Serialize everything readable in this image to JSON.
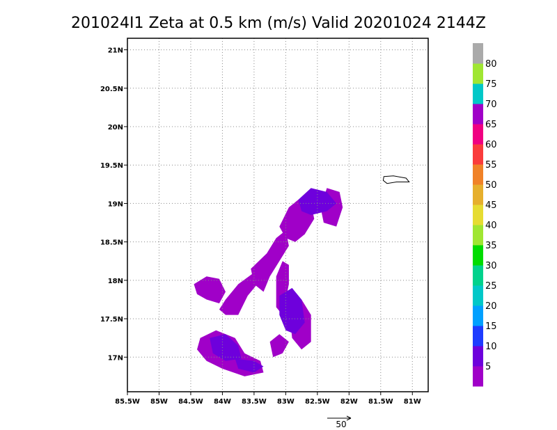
{
  "chart_data": {
    "type": "heatmap",
    "title": "201024I1 Zeta at 0.5 km (m/s) Valid 20201024 2144Z",
    "x_axis": {
      "range": [
        -85.5,
        -80.75
      ],
      "ticks": [
        -85.5,
        -85,
        -84.5,
        -84,
        -83.5,
        -83,
        -82.5,
        -82,
        -81.5,
        -81
      ],
      "tick_labels": [
        "85.5W",
        "85W",
        "84.5W",
        "84W",
        "83.5W",
        "83W",
        "82.5W",
        "82W",
        "81.5W",
        "81W"
      ]
    },
    "y_axis": {
      "range": [
        16.55,
        21.15
      ],
      "ticks": [
        17,
        17.5,
        18,
        18.5,
        19,
        19.5,
        20,
        20.5,
        21
      ],
      "tick_labels": [
        "17N",
        "17.5N",
        "18N",
        "18.5N",
        "19N",
        "19.5N",
        "20N",
        "20.5N",
        "21N"
      ]
    },
    "grid": true,
    "colorbar": {
      "position": "right",
      "labels": [
        "5",
        "10",
        "15",
        "20",
        "25",
        "30",
        "35",
        "40",
        "45",
        "50",
        "55",
        "60",
        "65",
        "70",
        "75",
        "80"
      ],
      "colors": [
        "#a000c8",
        "#6e00dc",
        "#1e3cff",
        "#00a0ff",
        "#00c8c8",
        "#00d28c",
        "#00dc00",
        "#a0e632",
        "#e6dc32",
        "#e6af2d",
        "#f08228",
        "#fa3c3c",
        "#f00082",
        "#a000c8",
        "#00c8c8",
        "#a0e632",
        "#aaaaaa"
      ]
    },
    "vector_reference": {
      "label": "50"
    },
    "regions": [
      {
        "level": 5,
        "polygon": [
          [
            -84.45,
            17.95
          ],
          [
            -84.25,
            18.05
          ],
          [
            -84.05,
            18.02
          ],
          [
            -83.95,
            17.85
          ],
          [
            -84.05,
            17.7
          ],
          [
            -84.25,
            17.75
          ],
          [
            -84.4,
            17.82
          ]
        ]
      },
      {
        "level": 5,
        "polygon": [
          [
            -83.95,
            17.75
          ],
          [
            -83.75,
            17.95
          ],
          [
            -83.5,
            18.1
          ],
          [
            -83.4,
            18.0
          ],
          [
            -83.6,
            17.8
          ],
          [
            -83.75,
            17.55
          ],
          [
            -83.95,
            17.55
          ],
          [
            -84.05,
            17.62
          ]
        ]
      },
      {
        "level": 5,
        "polygon": [
          [
            -83.55,
            18.15
          ],
          [
            -83.3,
            18.35
          ],
          [
            -83.15,
            18.55
          ],
          [
            -83.0,
            18.65
          ],
          [
            -82.95,
            18.45
          ],
          [
            -83.1,
            18.25
          ],
          [
            -83.25,
            18.05
          ],
          [
            -83.35,
            17.85
          ],
          [
            -83.5,
            17.95
          ]
        ]
      },
      {
        "level": 5,
        "polygon": [
          [
            -83.1,
            18.7
          ],
          [
            -82.95,
            18.95
          ],
          [
            -82.8,
            19.05
          ],
          [
            -82.6,
            19.0
          ],
          [
            -82.55,
            18.8
          ],
          [
            -82.7,
            18.6
          ],
          [
            -82.85,
            18.5
          ],
          [
            -83.0,
            18.55
          ]
        ]
      },
      {
        "level": 5,
        "polygon": [
          [
            -83.15,
            18.05
          ],
          [
            -83.05,
            18.25
          ],
          [
            -82.95,
            18.2
          ],
          [
            -82.95,
            17.95
          ],
          [
            -83.05,
            17.55
          ],
          [
            -83.15,
            17.65
          ]
        ]
      },
      {
        "level": 5,
        "polygon": [
          [
            -82.95,
            17.65
          ],
          [
            -82.75,
            17.75
          ],
          [
            -82.6,
            17.55
          ],
          [
            -82.6,
            17.2
          ],
          [
            -82.75,
            17.1
          ],
          [
            -82.9,
            17.25
          ]
        ]
      },
      {
        "level": 5,
        "polygon": [
          [
            -84.35,
            17.25
          ],
          [
            -84.1,
            17.35
          ],
          [
            -83.8,
            17.25
          ],
          [
            -83.65,
            17.05
          ],
          [
            -83.4,
            16.95
          ],
          [
            -83.35,
            16.8
          ],
          [
            -83.65,
            16.75
          ],
          [
            -84.0,
            16.85
          ],
          [
            -84.25,
            16.95
          ],
          [
            -84.4,
            17.1
          ]
        ]
      },
      {
        "level": 5,
        "polygon": [
          [
            -83.25,
            17.2
          ],
          [
            -83.1,
            17.3
          ],
          [
            -82.95,
            17.2
          ],
          [
            -83.05,
            17.05
          ],
          [
            -83.2,
            17.0
          ]
        ]
      },
      {
        "level": 5,
        "polygon": [
          [
            -82.35,
            19.2
          ],
          [
            -82.15,
            19.15
          ],
          [
            -82.1,
            18.95
          ],
          [
            -82.2,
            18.7
          ],
          [
            -82.4,
            18.75
          ],
          [
            -82.45,
            18.95
          ]
        ]
      },
      {
        "level": 10,
        "polygon": [
          [
            -82.8,
            19.05
          ],
          [
            -82.6,
            19.2
          ],
          [
            -82.35,
            19.15
          ],
          [
            -82.2,
            19.0
          ],
          [
            -82.35,
            18.9
          ],
          [
            -82.6,
            18.85
          ],
          [
            -82.75,
            18.9
          ]
        ]
      },
      {
        "level": 10,
        "polygon": [
          [
            -83.1,
            17.8
          ],
          [
            -82.9,
            17.9
          ],
          [
            -82.75,
            17.75
          ],
          [
            -82.7,
            17.45
          ],
          [
            -82.85,
            17.3
          ],
          [
            -83.0,
            17.35
          ],
          [
            -83.1,
            17.55
          ]
        ]
      },
      {
        "level": 10,
        "polygon": [
          [
            -84.2,
            17.25
          ],
          [
            -83.95,
            17.3
          ],
          [
            -83.75,
            17.15
          ],
          [
            -83.7,
            16.98
          ],
          [
            -83.95,
            16.95
          ],
          [
            -84.15,
            17.05
          ]
        ]
      },
      {
        "level": 10,
        "polygon": [
          [
            -83.8,
            16.98
          ],
          [
            -83.5,
            16.95
          ],
          [
            -83.35,
            16.88
          ],
          [
            -83.5,
            16.8
          ],
          [
            -83.75,
            16.85
          ]
        ]
      }
    ],
    "islands": [
      {
        "polygon": [
          [
            -81.45,
            19.35
          ],
          [
            -81.3,
            19.36
          ],
          [
            -81.1,
            19.33
          ],
          [
            -81.05,
            19.28
          ],
          [
            -81.25,
            19.28
          ],
          [
            -81.4,
            19.26
          ],
          [
            -81.46,
            19.3
          ]
        ]
      }
    ]
  }
}
